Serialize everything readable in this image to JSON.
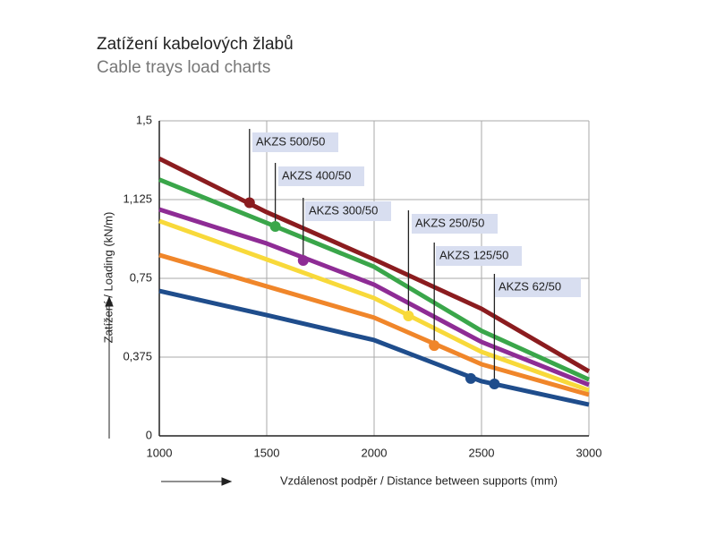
{
  "chart_data": {
    "type": "line",
    "title": "Zatížení kabelových žlabů",
    "subtitle": "Cable trays load charts",
    "y_label": "Zatížení / Loading (kN/m)",
    "x_label": "Vzdálenost podpěr / Distance between supports (mm)",
    "xlim": [
      1000,
      3000
    ],
    "xticks": [
      1000,
      1500,
      2000,
      2500,
      3000
    ],
    "ylim": [
      0,
      1.5
    ],
    "yticks": [
      0,
      {
        "value": 0.375,
        "label": "0,375"
      },
      {
        "value": 0.75,
        "label": "0,75"
      },
      {
        "value": 1.125,
        "label": "1,125"
      },
      {
        "value": 1.5,
        "label": "1,5"
      }
    ],
    "grid": true,
    "series": [
      {
        "name": "AKZS 500/50",
        "color": "#8b1c1f",
        "x": [
          1000,
          1500,
          2000,
          2500,
          3000
        ],
        "values": [
          1.32,
          1.065,
          0.84,
          0.605,
          0.307
        ],
        "markers": [
          {
            "x": 1420,
            "value": 1.11
          }
        ]
      },
      {
        "name": "AKZS 400/50",
        "color": "#3aa64a",
        "x": [
          1000,
          1500,
          2000,
          2500,
          3000
        ],
        "values": [
          1.22,
          1.014,
          0.805,
          0.5,
          0.268
        ],
        "markers": [
          {
            "x": 1540,
            "value": 0.997
          }
        ]
      },
      {
        "name": "AKZS 300/50",
        "color": "#8e2c95",
        "x": [
          1000,
          1500,
          2000,
          2500,
          3000
        ],
        "values": [
          1.078,
          0.916,
          0.72,
          0.447,
          0.243
        ],
        "markers": [
          {
            "x": 1670,
            "value": 0.835
          }
        ]
      },
      {
        "name": "AKZS 250/50",
        "color": "#f8d93a",
        "x": [
          1000,
          1500,
          2000,
          2500,
          3000
        ],
        "values": [
          1.023,
          0.84,
          0.656,
          0.4,
          0.217
        ],
        "markers": [
          {
            "x": 2160,
            "value": 0.571
          }
        ]
      },
      {
        "name": "AKZS 125/50",
        "color": "#f0862a",
        "x": [
          1000,
          1500,
          2000,
          2500,
          3000
        ],
        "values": [
          0.861,
          0.712,
          0.563,
          0.341,
          0.196
        ],
        "markers": [
          {
            "x": 2280,
            "value": 0.43
          }
        ]
      },
      {
        "name": "AKZS 62/50",
        "color": "#1f4d8c",
        "x": [
          1000,
          1500,
          2000,
          2500,
          3000
        ],
        "values": [
          0.69,
          0.575,
          0.456,
          0.26,
          0.149
        ],
        "markers": [
          {
            "x": 2450,
            "value": 0.273
          },
          {
            "x": 2560,
            "value": 0.247
          }
        ]
      }
    ]
  }
}
